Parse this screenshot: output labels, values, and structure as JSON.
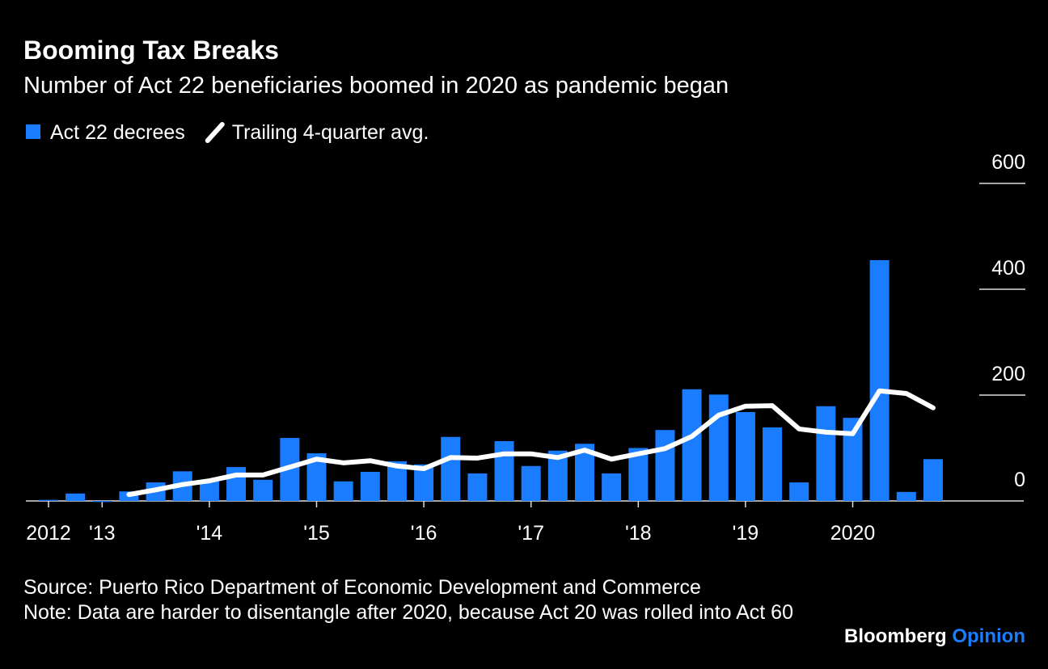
{
  "chart_data": {
    "type": "bar_line",
    "title": "Booming Tax Breaks",
    "subtitle": "Number of Act 22 beneficiaries boomed in 2020 as pandemic began",
    "categories": [
      "2012",
      null,
      "'13",
      null,
      null,
      null,
      "'14",
      null,
      null,
      null,
      "'15",
      null,
      null,
      null,
      "'16",
      null,
      null,
      null,
      "'17",
      null,
      null,
      null,
      "'18",
      null,
      null,
      null,
      "'19",
      null,
      null,
      null,
      "2020",
      null,
      null,
      null
    ],
    "series": [
      {
        "name": "Act 22 decrees",
        "type": "bar",
        "color": "#1a7cff",
        "values": [
          2,
          14,
          -2,
          18,
          35,
          56,
          38,
          64,
          40,
          119,
          90,
          37,
          55,
          75,
          69,
          121,
          52,
          113,
          66,
          95,
          108,
          52,
          100,
          134,
          211,
          201,
          168,
          139,
          35,
          179,
          157,
          455,
          17,
          79
        ]
      },
      {
        "name": "Trailing 4-quarter avg.",
        "type": "line",
        "color": "#ffffff",
        "values": [
          null,
          null,
          null,
          12,
          21,
          31,
          38,
          49,
          49,
          64,
          79,
          72,
          76,
          66,
          61,
          82,
          81,
          89,
          89,
          82,
          96,
          79,
          89,
          99,
          122,
          162,
          179,
          180,
          136,
          130,
          127,
          208,
          203,
          176
        ]
      }
    ],
    "ylim": [
      0,
      600
    ],
    "yticks": [
      0,
      200,
      400,
      600
    ],
    "source": "Source: Puerto Rico Department of Economic Development and Commerce",
    "note": "Note: Data are harder to disentangle after 2020, because Act 20 was rolled into Act 60",
    "logo": [
      "Bloomberg",
      "Opinion"
    ]
  }
}
